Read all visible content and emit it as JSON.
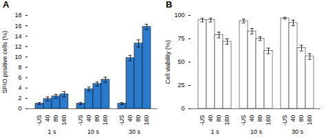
{
  "chart_data": [
    {
      "type": "bar",
      "title": "A",
      "ylabel": "SPIO positive cells (%)",
      "categories": [
        "-US",
        "40",
        "80",
        "160",
        "-US",
        "40",
        "80",
        "160",
        "-US",
        "40",
        "80",
        "160"
      ],
      "group_labels": [
        "1 s",
        "10 s",
        "30 s"
      ],
      "values": [
        1.0,
        1.9,
        2.4,
        2.8,
        1.0,
        3.8,
        4.8,
        5.6,
        1.0,
        9.8,
        12.6,
        15.8
      ],
      "errors": [
        0.2,
        0.4,
        0.4,
        0.5,
        0.2,
        0.4,
        0.4,
        0.5,
        0.2,
        0.5,
        0.7,
        0.5
      ],
      "color": "#2B7BCC",
      "ylim": [
        0,
        18
      ],
      "yticks": [
        0,
        2,
        4,
        6,
        8,
        10,
        12,
        14,
        16,
        18
      ],
      "grid": false
    },
    {
      "type": "bar",
      "title": "B",
      "ylabel": "Cell viability (%)",
      "categories": [
        "-US",
        "40",
        "80",
        "160",
        "-US",
        "40",
        "80",
        "160",
        "-US",
        "40",
        "80",
        "160"
      ],
      "group_labels": [
        "1 s",
        "10 s",
        "30 s"
      ],
      "values": [
        95,
        95,
        79,
        72,
        94,
        83,
        75,
        62,
        97,
        92,
        65,
        56
      ],
      "errors": [
        2,
        2,
        3,
        3,
        2,
        3,
        2,
        3,
        1,
        3,
        3,
        3
      ],
      "color": "white",
      "ylim": [
        0,
        100
      ],
      "yticks": [
        0,
        25,
        50,
        75,
        100
      ],
      "grid": false
    }
  ]
}
